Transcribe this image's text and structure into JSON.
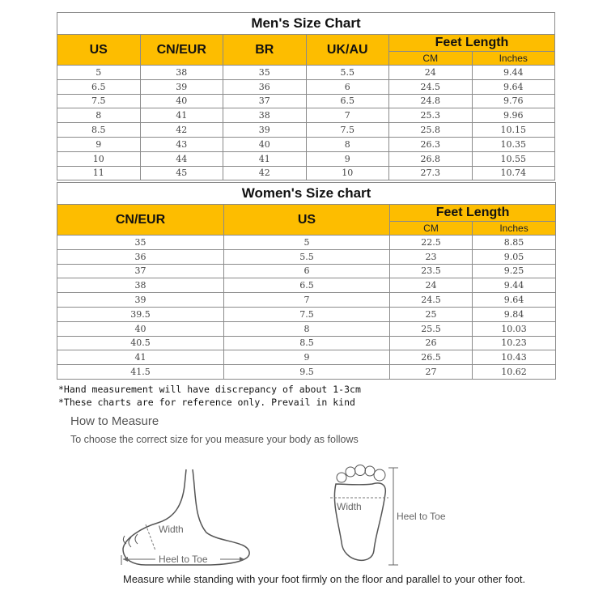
{
  "men": {
    "title": "Men's Size Chart",
    "headers": [
      "US",
      "CN/EUR",
      "BR",
      "UK/AU"
    ],
    "feet_length": "Feet Length",
    "cm": "CM",
    "inches": "Inches",
    "rows": [
      [
        "5",
        "38",
        "35",
        "5.5",
        "24",
        "9.44"
      ],
      [
        "6.5",
        "39",
        "36",
        "6",
        "24.5",
        "9.64"
      ],
      [
        "7.5",
        "40",
        "37",
        "6.5",
        "24.8",
        "9.76"
      ],
      [
        "8",
        "41",
        "38",
        "7",
        "25.3",
        "9.96"
      ],
      [
        "8.5",
        "42",
        "39",
        "7.5",
        "25.8",
        "10.15"
      ],
      [
        "9",
        "43",
        "40",
        "8",
        "26.3",
        "10.35"
      ],
      [
        "10",
        "44",
        "41",
        "9",
        "26.8",
        "10.55"
      ],
      [
        "11",
        "45",
        "42",
        "10",
        "27.3",
        "10.74"
      ]
    ]
  },
  "women": {
    "title": "Women's Size chart",
    "headers": [
      "CN/EUR",
      "US"
    ],
    "feet_length": "Feet Length",
    "cm": "CM",
    "inches": "Inches",
    "rows": [
      [
        "35",
        "5",
        "22.5",
        "8.85"
      ],
      [
        "36",
        "5.5",
        "23",
        "9.05"
      ],
      [
        "37",
        "6",
        "23.5",
        "9.25"
      ],
      [
        "38",
        "6.5",
        "24",
        "9.44"
      ],
      [
        "39",
        "7",
        "24.5",
        "9.64"
      ],
      [
        "39.5",
        "7.5",
        "25",
        "9.84"
      ],
      [
        "40",
        "8",
        "25.5",
        "10.03"
      ],
      [
        "40.5",
        "8.5",
        "26",
        "10.23"
      ],
      [
        "41",
        "9",
        "26.5",
        "10.43"
      ],
      [
        "41.5",
        "9.5",
        "27",
        "10.62"
      ]
    ]
  },
  "notes": [
    "*Hand measurement will have discrepancy of about 1-3cm",
    "*These charts are for reference only. Prevail in kind"
  ],
  "measure": {
    "title": "How to Measure",
    "subtitle": "To choose the correct size for you measure your body as follows",
    "side_width": "Width",
    "side_heel": "Heel to Toe",
    "top_width": "Width",
    "top_heel": "Heel to Toe",
    "caption": "Measure while standing with your foot firmly on the floor and parallel to your other foot."
  },
  "colors": {
    "header": "#fdbd00"
  }
}
